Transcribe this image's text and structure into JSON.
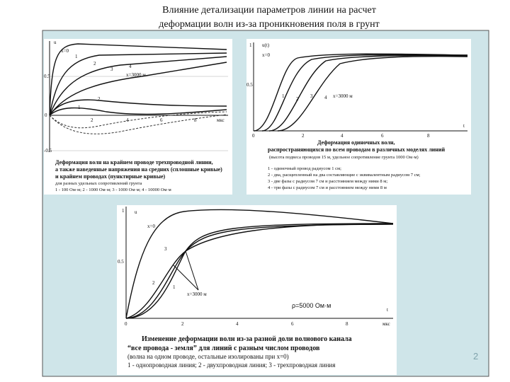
{
  "header": {
    "title": [
      "Влияние детализации параметров линии на расчет",
      "деформации волн из-за проникновения поля в грунт"
    ]
  },
  "figures": [
    {
      "labels": {
        "y_axis": "u",
        "curve_start": "x=0",
        "curve_end": "x=3000 м",
        "curves": [
          "1",
          "2",
          "3",
          "4",
          "1",
          "2"
        ],
        "y_ticks": [
          "0.5",
          "0",
          "-0.5"
        ],
        "x_ticks": [
          "2",
          "4",
          "6",
          "8"
        ],
        "x_unit": "мкс"
      },
      "caption": [
        "Деформация волн на крайнем проводе трехпроводной линии,",
        "а также наведенные напряжения на средних (сплошные кривые)",
        "и крайнем проводах (пунктирные кривые)",
        "для разных удельных сопротивлений грунта",
        "1 - 100 Ом·м;   2 - 1000 Ом·м;   3 - 1000 Ом·м;   4 - 10000 Ом·м"
      ]
    },
    {
      "labels": {
        "y_axis": "u(t)",
        "curve_start": "x=0",
        "curve_end": "x=3000 м",
        "curves": [
          "1",
          "2",
          "3",
          "4"
        ],
        "y_ticks": [
          "1",
          "0.5",
          "0"
        ],
        "x_ticks": [
          "2",
          "4",
          "6",
          "8"
        ],
        "x_unit": "t"
      },
      "caption": [
        "Деформация одиночных волн,",
        "распространяющихся по всем проводам в различных моделях линий",
        "(высота подвеса проводов 15 м, удельное сопротивление грунта 1000 Ом·м)",
        "1 - одиночный провод радиусом 1 см;",
        "2 - два, расщепленный на два составляющие с эквивалентным радиусом 7 см;",
        "3 - две фазы с радиусом 7 см и расстоянием между ними 8 м;",
        "4 - три фазы с радиусом 7 см и расстоянием между ними 8 м"
      ]
    },
    {
      "labels": {
        "y_axis": "u",
        "curve_start": "x=0",
        "curve_end": "x=3000 м",
        "curves": [
          "1",
          "2",
          "3"
        ],
        "y_ticks": [
          "1",
          "0.5",
          "0"
        ],
        "x_ticks": [
          "2",
          "4",
          "6",
          "8"
        ],
        "x_unit": "мкс",
        "time": "t",
        "resistivity": "ρ=5000 Ом·м"
      },
      "caption": [
        "Изменение деформации волн из-за разной доли волнового канала",
        "“все провода - земля” для линий с разным числом проводов",
        "(волна на одном проводе, остальные изолированы при x=0)",
        "1 - однопроводная линия;  2 - двухпроводная линия;  3 - трехпроводная линия"
      ]
    }
  ],
  "page_number": "2"
}
